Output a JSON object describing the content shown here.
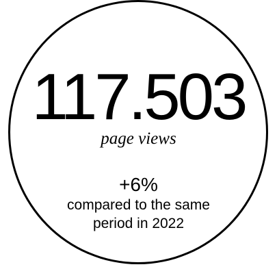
{
  "stat": {
    "value": "117.503",
    "label": "page views",
    "change": "+6%",
    "comparison_line1": "compared to the same",
    "comparison_line2": "period in 2022"
  },
  "colors": {
    "text": "#000000",
    "border": "#000000",
    "background": "#ffffff"
  }
}
